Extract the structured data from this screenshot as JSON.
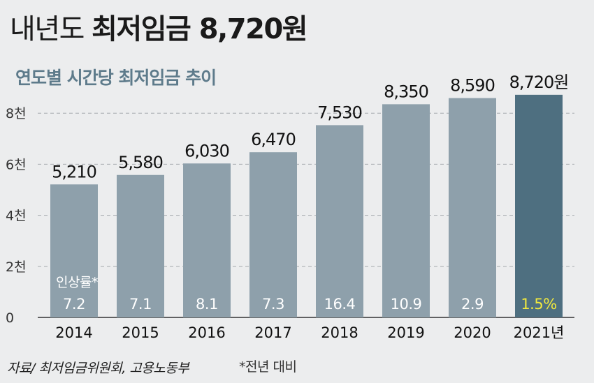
{
  "headline": {
    "prefix": "내년도",
    "emphasis": "최저임금 8,720원"
  },
  "subtitle": "연도별 시간당 최저임금 추이",
  "chart_data": {
    "type": "bar",
    "categories": [
      "2014",
      "2015",
      "2016",
      "2017",
      "2018",
      "2019",
      "2020",
      "2021년"
    ],
    "values": [
      5210,
      5580,
      6030,
      6470,
      7530,
      8350,
      8590,
      8720
    ],
    "value_labels": [
      "5,210",
      "5,580",
      "6,030",
      "6,470",
      "7,530",
      "8,350",
      "8,590",
      "8,720원"
    ],
    "increase_rates": [
      "7.2",
      "7.1",
      "8.1",
      "7.3",
      "16.4",
      "10.9",
      "2.9",
      "1.5%"
    ],
    "increase_rate_label": "인상률*",
    "yticks": [
      0,
      2000,
      4000,
      6000,
      8000
    ],
    "ytick_labels": [
      "0",
      "2천",
      "4천",
      "6천",
      "8천"
    ],
    "ylim": [
      0,
      10000
    ],
    "grid": "horizontal dashed",
    "title": "연도별 시간당 최저임금 추이",
    "xlabel": "",
    "ylabel": "",
    "colors": {
      "bar": "#8ea0ab",
      "bar_highlight": "#4e6f80",
      "rate_text": "#ffffff",
      "rate_highlight": "#f2ea3d",
      "subtitle": "#5e7b8b"
    }
  },
  "source": "자료/ 최저임금위원회, 고용노동부",
  "footnote": "*전년 대비"
}
